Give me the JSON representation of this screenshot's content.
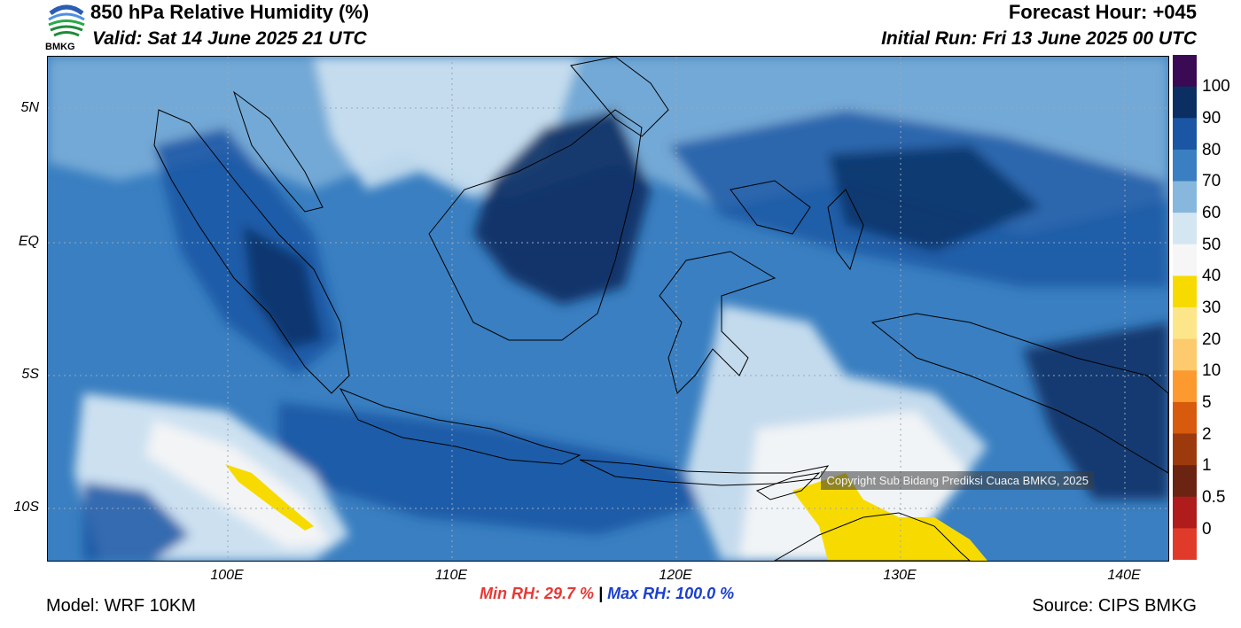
{
  "header": {
    "title": "850 hPa Relative Humidity (%)",
    "valid": "Valid: Sat 14 June 2025 21 UTC",
    "forecast_hour": "Forecast Hour: +045",
    "initial_run": "Initial Run: Fri 13 June 2025 00 UTC",
    "logo_text": "BMKG"
  },
  "axes": {
    "lat_labels": [
      "5N",
      "EQ",
      "5S",
      "10S"
    ],
    "lon_labels": [
      "100E",
      "110E",
      "120E",
      "130E",
      "140E"
    ]
  },
  "colorbar": {
    "labels": [
      "100",
      "90",
      "80",
      "70",
      "60",
      "50",
      "40",
      "30",
      "20",
      "10",
      "5",
      "2",
      "1",
      "0.5",
      "0"
    ],
    "colors": [
      "#3a0a55",
      "#0b2f63",
      "#1a56a3",
      "#3a7fc1",
      "#87b7dc",
      "#d4e6f2",
      "#f6f6f6",
      "#f7db00",
      "#fde68a",
      "#fdcb6e",
      "#fd9a2f",
      "#d85a0c",
      "#9c3a0d",
      "#6b2412",
      "#b01b1b",
      "#e03b2a"
    ]
  },
  "map": {
    "copyright": "Copyright Sub Bidang Prediksi Cuaca BMKG, 2025"
  },
  "footer": {
    "model": "Model: WRF 10KM",
    "min_rh": "Min RH:  29.7 %",
    "separator": "|",
    "max_rh": "Max RH: 100.0 %",
    "source": "Source: CIPS BMKG"
  }
}
